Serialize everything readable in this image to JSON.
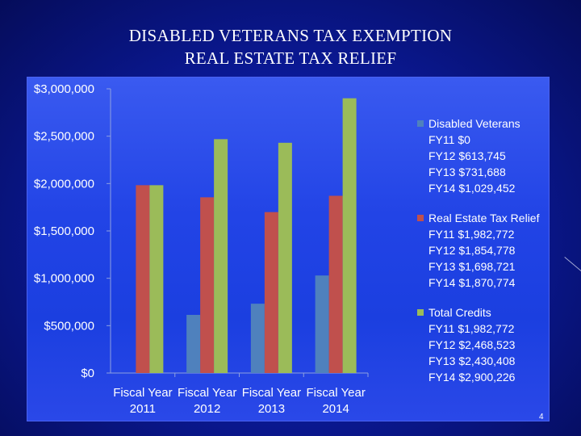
{
  "slide": {
    "title_line1": "DISABLED VETERANS TAX EXEMPTION",
    "title_line2": "REAL ESTATE TAX RELIEF",
    "page_number": "4"
  },
  "colors": {
    "disabled_veterans": "#4f81bd",
    "real_estate_relief": "#c0504d",
    "total_credits": "#9bbb59",
    "axis": "#8ea0e0"
  },
  "chart_data": {
    "type": "bar",
    "title": "DISABLED VETERANS TAX EXEMPTION / REAL ESTATE TAX RELIEF",
    "categories": [
      {
        "line1": "Fiscal Year",
        "line2": "2011"
      },
      {
        "line1": "Fiscal Year",
        "line2": "2012"
      },
      {
        "line1": "Fiscal Year",
        "line2": "2013"
      },
      {
        "line1": "Fiscal Year",
        "line2": "2014"
      }
    ],
    "ylim": [
      0,
      3000000
    ],
    "yticks": [
      {
        "value": 0,
        "label": "$0"
      },
      {
        "value": 500000,
        "label": "$500,000"
      },
      {
        "value": 1000000,
        "label": "$1,000,000"
      },
      {
        "value": 1500000,
        "label": "$1,500,000"
      },
      {
        "value": 2000000,
        "label": "$2,000,000"
      },
      {
        "value": 2500000,
        "label": "$2,500,000"
      },
      {
        "value": 3000000,
        "label": "$3,000,000"
      }
    ],
    "series": [
      {
        "key": "disabled_veterans",
        "name": "Disabled Veterans",
        "values": [
          0,
          613745,
          731688,
          1029452
        ],
        "legend_lines": [
          "FY11 $0",
          "FY12 $613,745",
          "FY13 $731,688",
          "FY14 $1,029,452"
        ]
      },
      {
        "key": "real_estate_relief",
        "name": "Real Estate Tax Relief",
        "values": [
          1982772,
          1854778,
          1698721,
          1870774
        ],
        "legend_lines": [
          "FY11 $1,982,772",
          "FY12 $1,854,778",
          "FY13 $1,698,721",
          "FY14 $1,870,774"
        ]
      },
      {
        "key": "total_credits",
        "name": "Total Credits",
        "values": [
          1982772,
          2468523,
          2430408,
          2900226
        ],
        "legend_lines": [
          "FY11 $1,982,772",
          "FY12 $2,468,523",
          "FY13 $2,430,408",
          "FY14 $2,900,226"
        ]
      }
    ],
    "legend_position": "right"
  }
}
